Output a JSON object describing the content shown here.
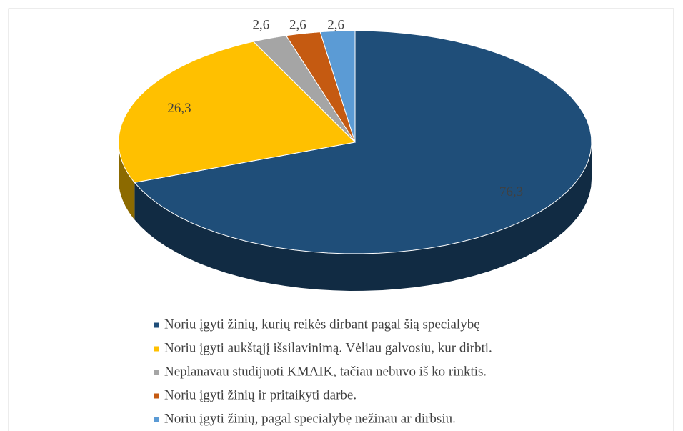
{
  "chart_data": {
    "type": "pie3d",
    "categories": [
      "Noriu įgyti žinių, kurių reikės dirbant pagal šią specialybę",
      "Noriu įgyti aukštąjį išsilavinimą. Vėliau galvosiu, kur dirbti.",
      "Neplanavau studijuoti KMAIK, tačiau nebuvo iš ko rinktis.",
      "Noriu įgyti žinių ir pritaikyti darbe.",
      "Noriu įgyti žinių, pagal specialybę nežinau ar dirbsiu."
    ],
    "values": [
      76.3,
      26.3,
      2.6,
      2.6,
      2.6
    ],
    "value_labels": [
      "76,3",
      "26,3",
      "2,6",
      "2,6",
      "2,6"
    ],
    "colors": [
      "#1f4e79",
      "#ffc000",
      "#a5a5a5",
      "#c55a11",
      "#5b9bd5"
    ]
  }
}
